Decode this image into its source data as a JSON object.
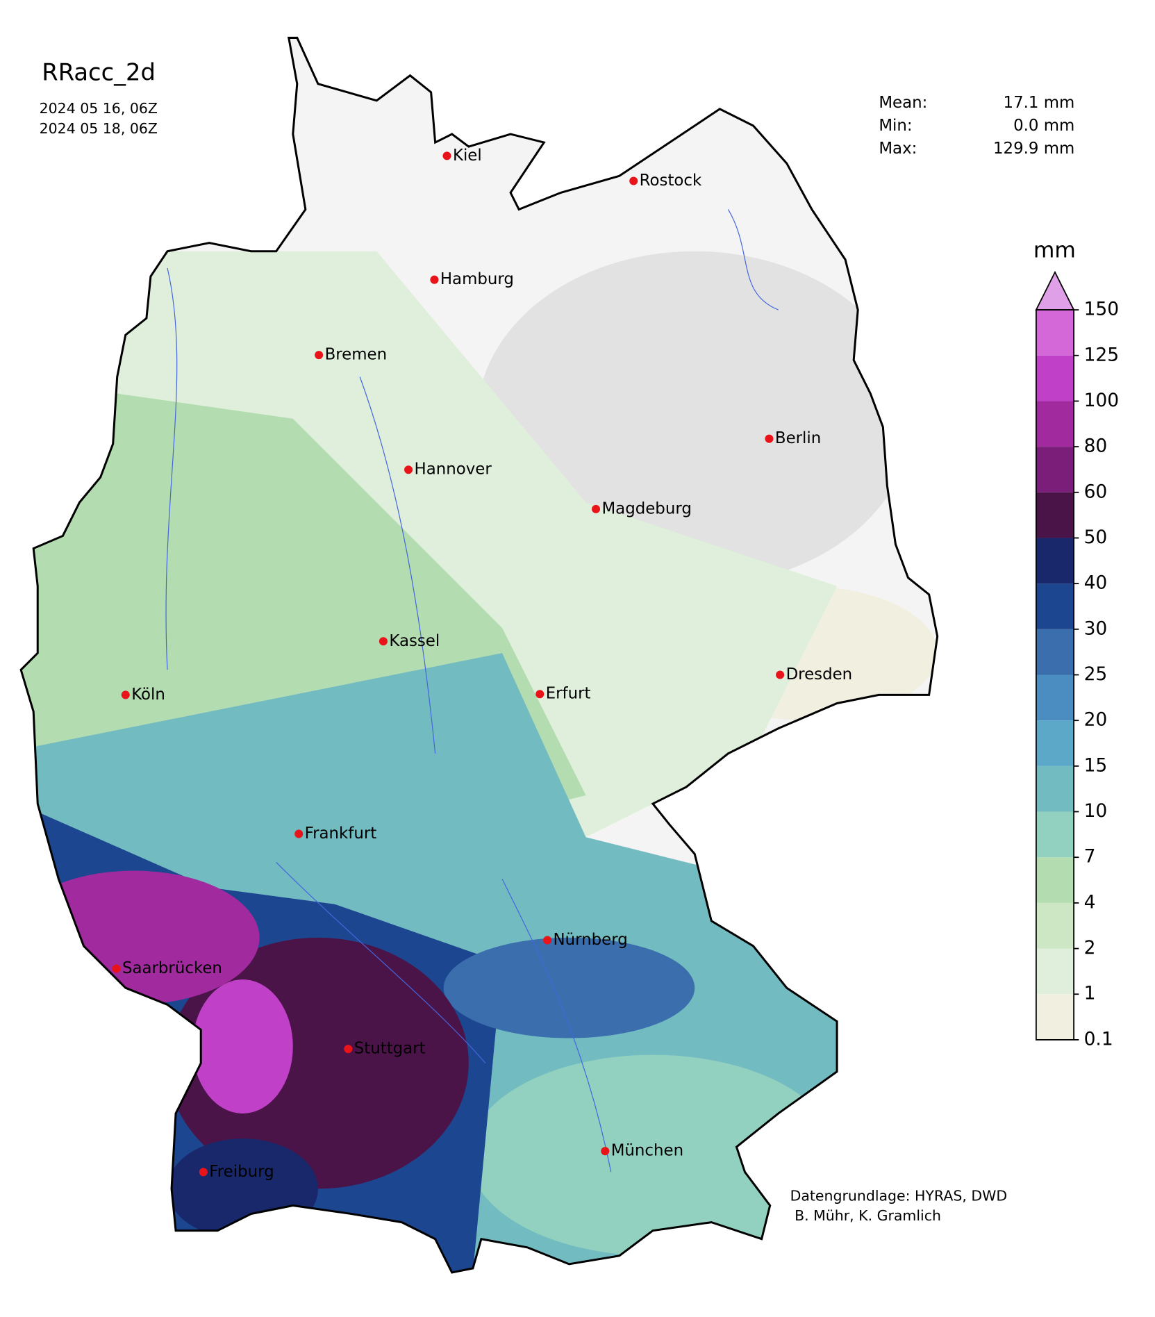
{
  "header": {
    "title": "RRacc_2d",
    "dates": [
      "2024 05 16, 06Z",
      "2024 05 18, 06Z"
    ]
  },
  "stats": [
    {
      "label": "Mean:",
      "value": "17.1 mm"
    },
    {
      "label": "Min:",
      "value": "0.0 mm"
    },
    {
      "label": "Max:",
      "value": "129.9 mm"
    }
  ],
  "legend": {
    "title": "mm",
    "ticks": [
      0.1,
      1,
      2,
      4,
      7,
      10,
      15,
      20,
      25,
      30,
      40,
      50,
      60,
      80,
      100,
      125,
      150
    ],
    "colors": [
      "#f1f0e0",
      "#e0efdc",
      "#cde6c4",
      "#b3dcb0",
      "#92d0c0",
      "#72bbc1",
      "#5ba8c9",
      "#4b8dc0",
      "#3a6ead",
      "#1d4690",
      "#18286a",
      "#4a1448",
      "#7a1e7a",
      "#a02a9e",
      "#c040c8",
      "#d468d8"
    ],
    "extend_color": "#e0a0e8"
  },
  "cities": [
    "Kiel",
    "Rostock",
    "Hamburg",
    "Bremen",
    "Hannover",
    "Berlin",
    "Magdeburg",
    "Kassel",
    "Köln",
    "Dresden",
    "Erfurt",
    "Frankfurt",
    "Nürnberg",
    "Saarbrücken",
    "Stuttgart",
    "Freiburg",
    "München"
  ],
  "credits": [
    "Datengrundlage: HYRAS, DWD",
    " B. Mühr, K. Gramlich"
  ]
}
